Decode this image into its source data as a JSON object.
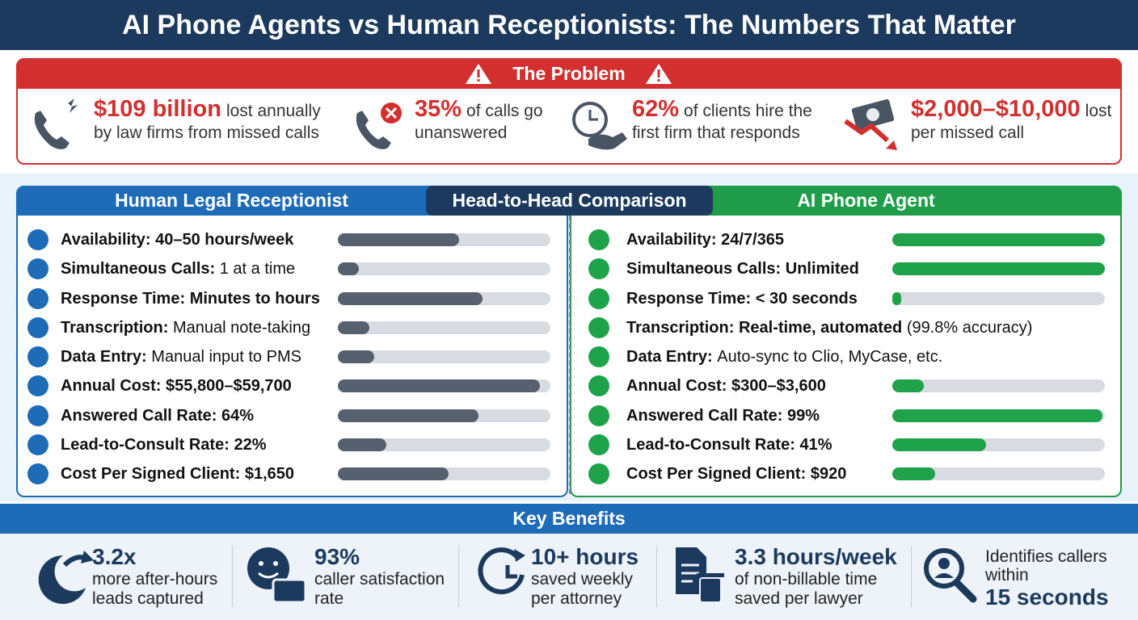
{
  "title": "AI Phone Agents vs Human Receptionists: The Numbers That Matter",
  "problem": {
    "heading": "The Problem",
    "items": [
      {
        "highlight": "$109 billion",
        "text": "lost annually by law firms from missed calls"
      },
      {
        "highlight": "35%",
        "text": "of calls go unanswered"
      },
      {
        "highlight": "62%",
        "text": "of clients hire the first firm that responds"
      },
      {
        "highlight": "$2,000–$10,000",
        "text": "lost per missed call"
      }
    ]
  },
  "comparison": {
    "heading": "Head-to-Head Comparison",
    "bar_lim": [
      0,
      100
    ],
    "panels": [
      {
        "name": "Human Legal Receptionist",
        "color": "#56606e",
        "header_color": "#1e6bb8",
        "rows": [
          {
            "label": "Availability:",
            "value": "40–50 hours/week",
            "bold_value": true,
            "bar": 57
          },
          {
            "label": "Simultaneous Calls:",
            "value": "1 at a time",
            "bold_value": false,
            "bar": 10
          },
          {
            "label": "Response Time:",
            "value": "Minutes to hours",
            "bold_value": true,
            "bar": 68
          },
          {
            "label": "Transcription:",
            "value": "Manual note-taking",
            "bold_value": false,
            "bar": 15
          },
          {
            "label": "Data Entry:",
            "value": "Manual input to PMS",
            "bold_value": false,
            "bar": 17
          },
          {
            "label": "Annual Cost:",
            "value": "$55,800–$59,700",
            "bold_value": true,
            "bar": 95
          },
          {
            "label": "Answered Call Rate:",
            "value": "64%",
            "bold_value": true,
            "bar": 66
          },
          {
            "label": "Lead-to-Consult Rate:",
            "value": "22%",
            "bold_value": true,
            "bar": 23
          },
          {
            "label": "Cost Per Signed Client:",
            "value": "$1,650",
            "bold_value": true,
            "bar": 52
          }
        ]
      },
      {
        "name": "AI Phone Agent",
        "color": "#1fa34a",
        "header_color": "#1f9d4a",
        "rows": [
          {
            "label": "Availability:",
            "value": "24/7/365",
            "bold_value": true,
            "bar": 100
          },
          {
            "label": "Simultaneous Calls:",
            "value": "Unlimited",
            "bold_value": true,
            "bar": 100
          },
          {
            "label": "Response Time:",
            "value": "< 30 seconds",
            "bold_value": true,
            "bar": 4
          },
          {
            "label": "Transcription:",
            "value": "Real-time, automated",
            "bold_value": true,
            "note": "(99.8% accuracy)",
            "bar": null
          },
          {
            "label": "Data Entry:",
            "value": "Auto-sync to Clio, MyCase, etc.",
            "bold_value": false,
            "bar": null
          },
          {
            "label": "Annual Cost:",
            "value": "$300–$3,600",
            "bold_value": true,
            "bar": 15
          },
          {
            "label": "Answered Call Rate:",
            "value": "99%",
            "bold_value": true,
            "bar": 99
          },
          {
            "label": "Lead-to-Consult Rate:",
            "value": "41%",
            "bold_value": true,
            "bar": 44
          },
          {
            "label": "Cost Per Signed Client:",
            "value": "$920",
            "bold_value": true,
            "bar": 20
          }
        ]
      }
    ]
  },
  "benefits": {
    "heading": "Key Benefits",
    "items": [
      {
        "highlight": "3.2x",
        "text": "more after-hours leads captured"
      },
      {
        "highlight": "93%",
        "text": "caller satisfaction rate"
      },
      {
        "highlight": "10+ hours",
        "text": "saved weekly per attorney"
      },
      {
        "highlight": "3.3 hours/week",
        "text": "of non-billable time saved per lawyer"
      },
      {
        "text": "Identifies callers within",
        "highlight": "15 seconds",
        "highlight_last": true
      }
    ]
  }
}
